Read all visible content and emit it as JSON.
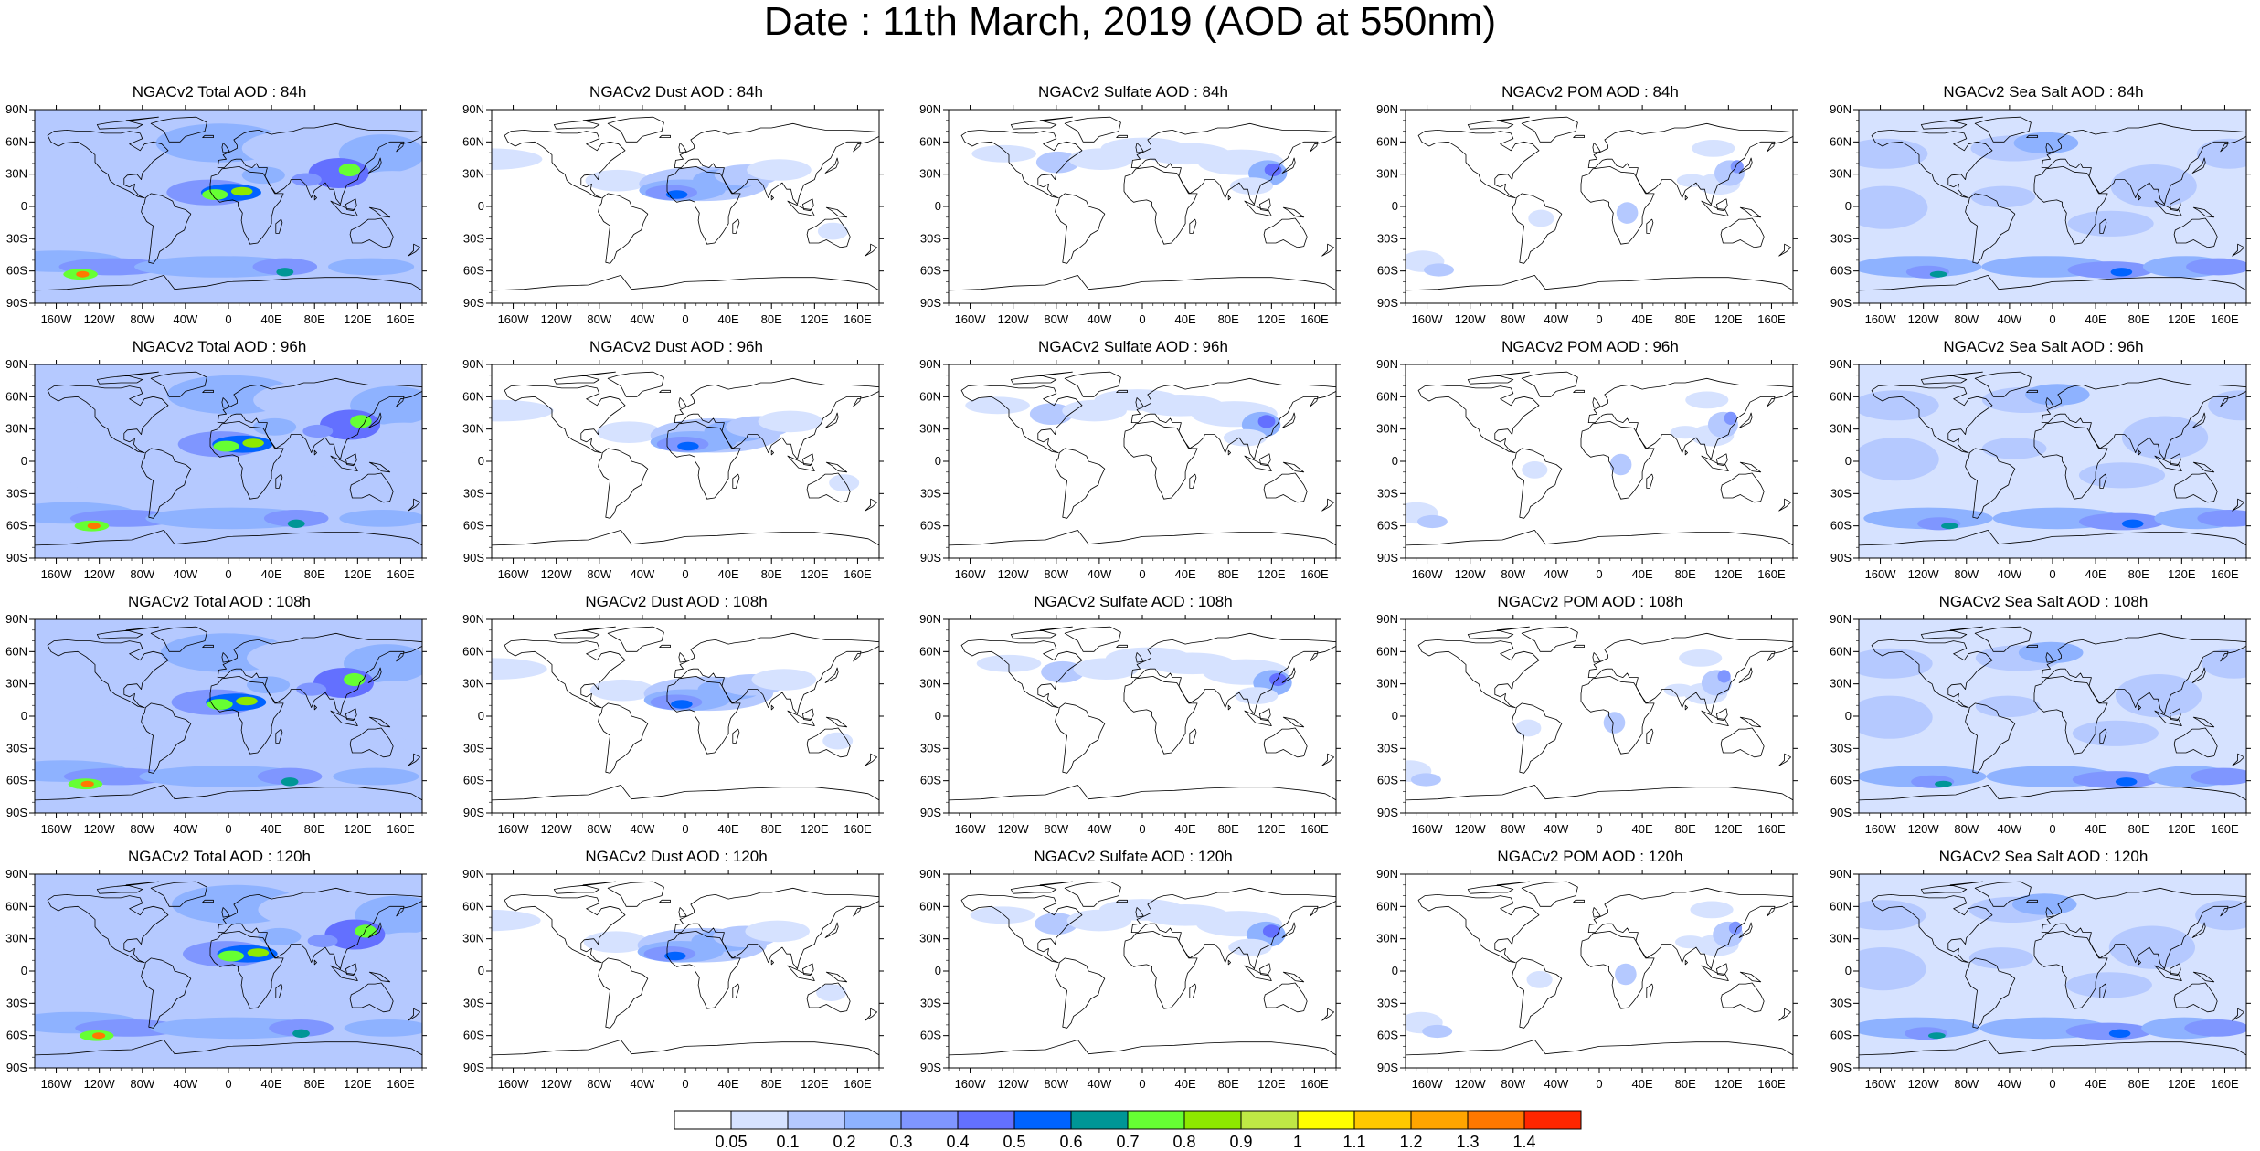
{
  "title": "Date : 11th March, 2019 (AOD at 550nm)",
  "land_color": "#ffffff",
  "coast_color": "#000000",
  "lon_ticks": [
    "160W",
    "120W",
    "80W",
    "40W",
    "0",
    "40E",
    "80E",
    "120E",
    "160E"
  ],
  "lat_ticks": [
    "90N",
    "60N",
    "30N",
    "0",
    "30S",
    "60S",
    "90S"
  ],
  "colorbar": {
    "colors": [
      "#ffffff",
      "#d6e2ff",
      "#b5c9ff",
      "#8eb2ff",
      "#7f96ff",
      "#6370ff",
      "#0063ff",
      "#009696",
      "#66ff33",
      "#8ee800",
      "#bfe845",
      "#ffff00",
      "#ffc800",
      "#ffa500",
      "#ff7800",
      "#ff2600"
    ],
    "labels": [
      "0.05",
      "0.1",
      "0.2",
      "0.3",
      "0.4",
      "0.5",
      "0.6",
      "0.7",
      "0.8",
      "0.9",
      "1",
      "1.1",
      "1.2",
      "1.3",
      "1.4"
    ]
  },
  "panels": [
    {
      "title": "NGACv2 Total AOD : 84h",
      "var": "total"
    },
    {
      "title": "NGACv2 Dust AOD : 84h",
      "var": "dust"
    },
    {
      "title": "NGACv2 Sulfate AOD : 84h",
      "var": "sulfate"
    },
    {
      "title": "NGACv2 POM AOD : 84h",
      "var": "pom"
    },
    {
      "title": "NGACv2 Sea Salt AOD : 84h",
      "var": "seasalt"
    },
    {
      "title": "NGACv2 Total AOD : 96h",
      "var": "total"
    },
    {
      "title": "NGACv2 Dust AOD : 96h",
      "var": "dust"
    },
    {
      "title": "NGACv2 Sulfate AOD : 96h",
      "var": "sulfate"
    },
    {
      "title": "NGACv2 POM AOD : 96h",
      "var": "pom"
    },
    {
      "title": "NGACv2 Sea Salt AOD : 96h",
      "var": "seasalt"
    },
    {
      "title": "NGACv2 Total AOD : 108h",
      "var": "total"
    },
    {
      "title": "NGACv2 Dust AOD : 108h",
      "var": "dust"
    },
    {
      "title": "NGACv2 Sulfate AOD : 108h",
      "var": "sulfate"
    },
    {
      "title": "NGACv2 POM AOD : 108h",
      "var": "pom"
    },
    {
      "title": "NGACv2 Sea Salt AOD : 108h",
      "var": "seasalt"
    },
    {
      "title": "NGACv2 Total AOD : 120h",
      "var": "total"
    },
    {
      "title": "NGACv2 Dust AOD : 120h",
      "var": "dust"
    },
    {
      "title": "NGACv2 Sulfate AOD : 120h",
      "var": "sulfate"
    },
    {
      "title": "NGACv2 POM AOD : 120h",
      "var": "pom"
    },
    {
      "title": "NGACv2 Sea Salt  AOD : 120h",
      "var": "seasalt"
    }
  ]
}
